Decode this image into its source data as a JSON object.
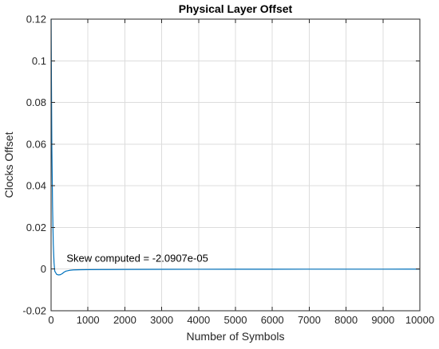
{
  "chart_data": {
    "type": "line",
    "title": "Physical Layer Offset",
    "xlabel": "Number of Symbols",
    "ylabel": "Clocks Offset",
    "xlim": [
      0,
      10000
    ],
    "ylim": [
      -0.02,
      0.12
    ],
    "x_ticks": [
      0,
      1000,
      2000,
      3000,
      4000,
      5000,
      6000,
      7000,
      8000,
      9000,
      10000
    ],
    "x_tick_labels": [
      "0",
      "1000",
      "2000",
      "3000",
      "4000",
      "5000",
      "6000",
      "7000",
      "8000",
      "9000",
      "10000"
    ],
    "y_ticks": [
      -0.02,
      0,
      0.02,
      0.04,
      0.06,
      0.08,
      0.1,
      0.12
    ],
    "y_tick_labels": [
      "-0.02",
      "0",
      "0.02",
      "0.04",
      "0.06",
      "0.08",
      "0.1",
      "0.12"
    ],
    "grid": true,
    "legend": "none",
    "annotation": {
      "text": "Skew computed = -2.0907e-05",
      "x": 420,
      "y": 0.0035
    },
    "series": [
      {
        "color": "#0072bd",
        "x": [
          1,
          10,
          20,
          40,
          60,
          80,
          100,
          150,
          200,
          250,
          300,
          350,
          400,
          500,
          600,
          800,
          1000,
          1500,
          2000,
          3000,
          4000,
          5000,
          6000,
          7000,
          8000,
          9000,
          10000
        ],
        "y": [
          0.12,
          0.09,
          0.06,
          0.03,
          0.012,
          0.003,
          -0.001,
          -0.0025,
          -0.0028,
          -0.0027,
          -0.0022,
          -0.0015,
          -0.001,
          -0.0006,
          -0.0004,
          -0.0003,
          -0.00025,
          -0.0002,
          -0.00015,
          -0.0001,
          -8e-05,
          -6e-05,
          -5e-05,
          -4e-05,
          -3e-05,
          -3e-05,
          -2e-05
        ]
      }
    ]
  }
}
